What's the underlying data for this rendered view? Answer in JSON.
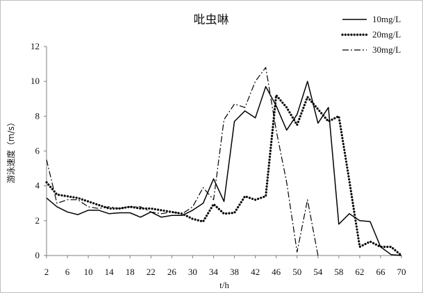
{
  "chart_data": {
    "type": "line",
    "title": "吡虫啉",
    "xlabel": "t/h",
    "ylabel": "游泳速度（m/s）",
    "xlim": [
      2,
      70
    ],
    "ylim": [
      0,
      12
    ],
    "x_ticks": [
      "2",
      "6",
      "10",
      "14",
      "18",
      "22",
      "26",
      "30",
      "34",
      "38",
      "42",
      "46",
      "50",
      "54",
      "58",
      "62",
      "66",
      "70"
    ],
    "y_ticks": [
      "0",
      "2",
      "4",
      "6",
      "8",
      "10",
      "12"
    ],
    "legend_position": "top-right",
    "grid": false,
    "series": [
      {
        "name": "10mg/L",
        "style": "solid",
        "color": "#000000",
        "points": [
          [
            2,
            3.3
          ],
          [
            4,
            2.8
          ],
          [
            6,
            2.5
          ],
          [
            8,
            2.35
          ],
          [
            10,
            2.6
          ],
          [
            12,
            2.6
          ],
          [
            14,
            2.4
          ],
          [
            16,
            2.45
          ],
          [
            18,
            2.45
          ],
          [
            20,
            2.2
          ],
          [
            22,
            2.5
          ],
          [
            24,
            2.2
          ],
          [
            26,
            2.3
          ],
          [
            28,
            2.3
          ],
          [
            30,
            2.6
          ],
          [
            32,
            3.0
          ],
          [
            34,
            4.4
          ],
          [
            36,
            3.1
          ],
          [
            38,
            7.7
          ],
          [
            40,
            8.3
          ],
          [
            42,
            7.9
          ],
          [
            44,
            9.7
          ],
          [
            46,
            8.6
          ],
          [
            48,
            7.2
          ],
          [
            50,
            8.1
          ],
          [
            52,
            10.0
          ],
          [
            54,
            7.6
          ],
          [
            56,
            8.5
          ],
          [
            58,
            1.8
          ],
          [
            60,
            2.4
          ],
          [
            62,
            2.0
          ],
          [
            64,
            1.95
          ],
          [
            66,
            0.5
          ],
          [
            68,
            0.05
          ],
          [
            70,
            0.0
          ]
        ]
      },
      {
        "name": "20mg/L",
        "style": "dotted",
        "color": "#000000",
        "points": [
          [
            2,
            4.2
          ],
          [
            4,
            3.5
          ],
          [
            6,
            3.4
          ],
          [
            8,
            3.3
          ],
          [
            10,
            3.1
          ],
          [
            12,
            2.9
          ],
          [
            14,
            2.7
          ],
          [
            16,
            2.7
          ],
          [
            18,
            2.8
          ],
          [
            20,
            2.7
          ],
          [
            22,
            2.7
          ],
          [
            24,
            2.6
          ],
          [
            26,
            2.5
          ],
          [
            28,
            2.4
          ],
          [
            30,
            2.1
          ],
          [
            32,
            1.95
          ],
          [
            34,
            2.95
          ],
          [
            36,
            2.4
          ],
          [
            38,
            2.45
          ],
          [
            40,
            3.4
          ],
          [
            42,
            3.2
          ],
          [
            44,
            3.4
          ],
          [
            46,
            9.2
          ],
          [
            48,
            8.5
          ],
          [
            50,
            7.5
          ],
          [
            52,
            9.1
          ],
          [
            54,
            8.4
          ],
          [
            56,
            7.7
          ],
          [
            58,
            8.0
          ],
          [
            60,
            4.3
          ],
          [
            62,
            0.5
          ],
          [
            64,
            0.8
          ],
          [
            66,
            0.5
          ],
          [
            68,
            0.5
          ],
          [
            70,
            0.0
          ]
        ]
      },
      {
        "name": "30mg/L",
        "style": "dashdot",
        "color": "#000000",
        "points": [
          [
            2,
            5.5
          ],
          [
            4,
            3.0
          ],
          [
            6,
            3.2
          ],
          [
            8,
            3.2
          ],
          [
            10,
            2.8
          ],
          [
            12,
            2.7
          ],
          [
            14,
            2.8
          ],
          [
            16,
            2.7
          ],
          [
            18,
            2.8
          ],
          [
            20,
            2.8
          ],
          [
            22,
            2.5
          ],
          [
            24,
            2.4
          ],
          [
            26,
            2.5
          ],
          [
            28,
            2.4
          ],
          [
            30,
            2.8
          ],
          [
            32,
            3.9
          ],
          [
            34,
            3.2
          ],
          [
            36,
            7.8
          ],
          [
            38,
            8.7
          ],
          [
            40,
            8.5
          ],
          [
            42,
            10.0
          ],
          [
            44,
            10.8
          ],
          [
            46,
            7.2
          ],
          [
            48,
            4.2
          ],
          [
            50,
            0.2
          ],
          [
            52,
            3.2
          ],
          [
            54,
            0.0
          ]
        ]
      }
    ]
  }
}
